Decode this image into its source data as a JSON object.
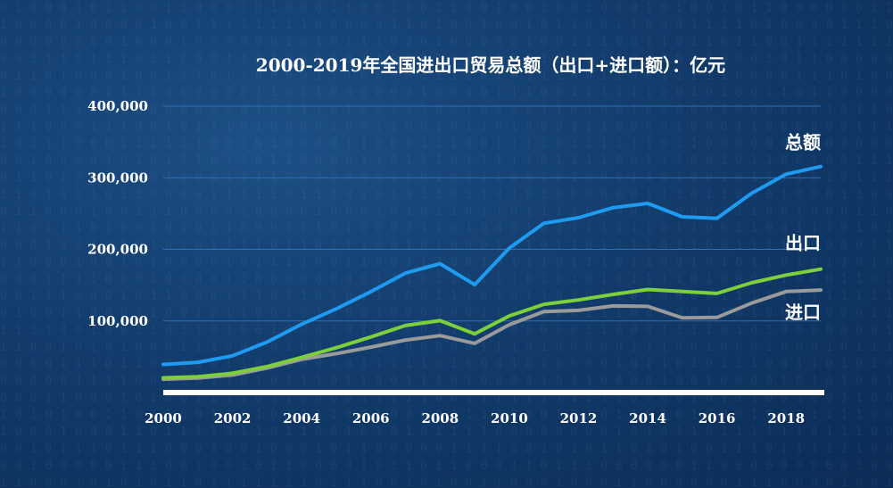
{
  "chart_data": {
    "type": "line",
    "title": "2000-2019年全国进出口贸易总额（出口+进口额）：亿元",
    "x": [
      2000,
      2001,
      2002,
      2003,
      2004,
      2005,
      2006,
      2007,
      2008,
      2009,
      2010,
      2011,
      2012,
      2013,
      2014,
      2015,
      2016,
      2017,
      2018,
      2019
    ],
    "x_tick_labels": [
      "2000",
      "2002",
      "2004",
      "2006",
      "2008",
      "2010",
      "2012",
      "2014",
      "2016",
      "2018"
    ],
    "y_tick_labels": [
      "100,000",
      "200,000",
      "300,000",
      "400,000"
    ],
    "ylim": [
      0,
      400000
    ],
    "grid": true,
    "series": [
      {
        "name": "总额",
        "color": "#1e9bf0",
        "values": [
          39300,
          42200,
          51400,
          70500,
          95500,
          116900,
          140900,
          166900,
          179900,
          150600,
          201700,
          236400,
          244200,
          258200,
          264200,
          245500,
          243400,
          278100,
          305100,
          315600
        ]
      },
      {
        "name": "出口",
        "color": "#7dcf3c",
        "values": [
          20600,
          22000,
          26900,
          36300,
          49100,
          62600,
          77600,
          93600,
          100400,
          82000,
          107000,
          123200,
          129400,
          137100,
          143900,
          141200,
          138400,
          153300,
          164100,
          172300
        ]
      },
      {
        "name": "进口",
        "color": "#9a9a9a",
        "values": [
          18600,
          20200,
          24400,
          34200,
          46400,
          54300,
          63400,
          73300,
          79500,
          68600,
          94700,
          113200,
          114800,
          121000,
          120400,
          104300,
          104900,
          124800,
          141000,
          143200
        ]
      }
    ]
  }
}
